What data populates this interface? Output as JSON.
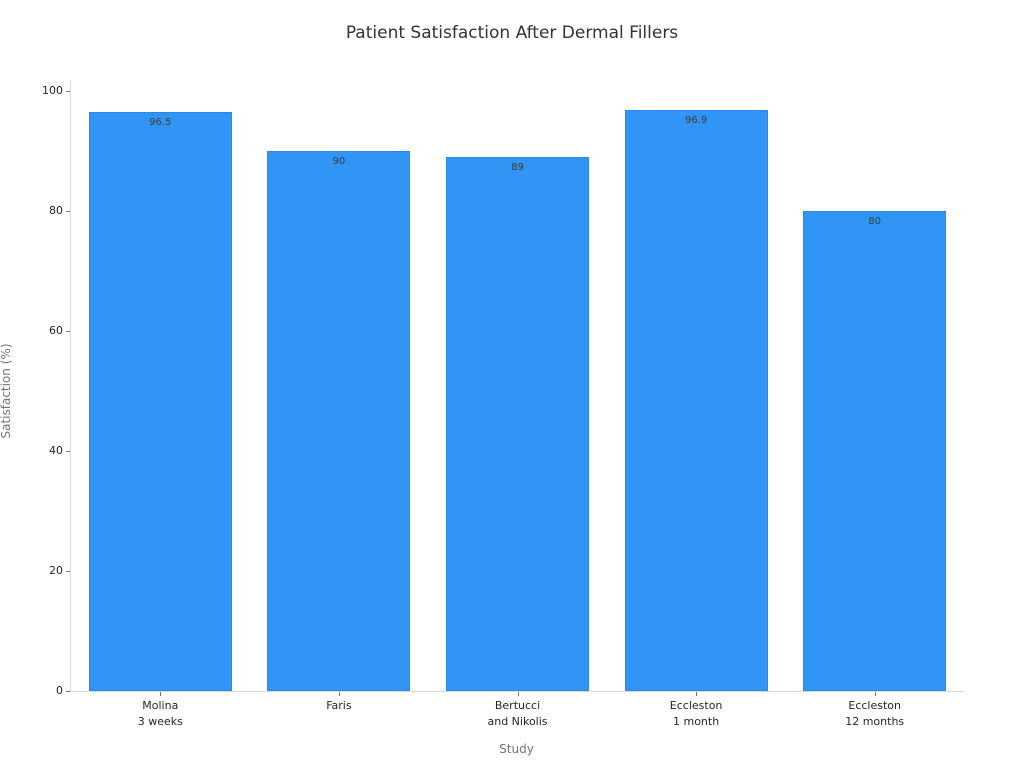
{
  "chart_data": {
    "type": "bar",
    "title": "Patient Satisfaction After Dermal Fillers",
    "xlabel": "Study",
    "ylabel": "Satisfaction (%)",
    "categories": [
      [
        "Molina",
        "3 weeks"
      ],
      [
        "Faris"
      ],
      [
        "Bertucci",
        "and Nikolis"
      ],
      [
        "Eccleston",
        "1 month"
      ],
      [
        "Eccleston",
        "12 months"
      ]
    ],
    "values": [
      96.5,
      90,
      89,
      96.9,
      80
    ],
    "bar_labels": [
      "96.5",
      "90",
      "89",
      "96.9",
      "80"
    ],
    "ylim": [
      0,
      100
    ],
    "yticks": [
      0,
      20,
      40,
      60,
      80,
      100
    ],
    "grid": false,
    "legend": "none",
    "colors": {
      "bar_fill": "#3095f5",
      "bar_edge": "#2b89e3",
      "bar_value_label": "#3a3a3a",
      "spine": "#d9d9d9",
      "tick_mark": "#707070",
      "tick_label": "#262626",
      "axis_label": "#757575",
      "title": "#333333"
    }
  }
}
